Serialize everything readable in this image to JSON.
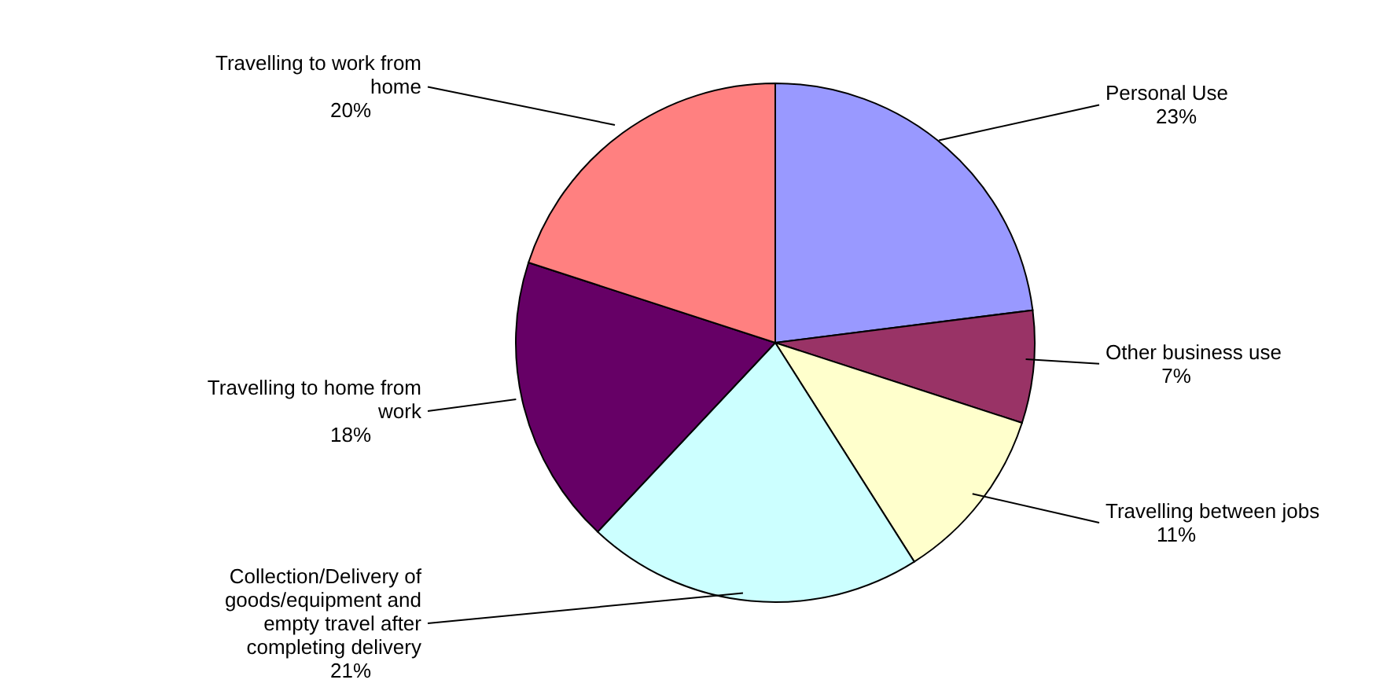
{
  "chart_data": {
    "type": "pie",
    "categories": [
      "Personal Use",
      "Other business use",
      "Travelling between jobs",
      "Collection/Delivery of goods/equipment and empty travel after completing delivery",
      "Travelling to home from work",
      "Travelling to work from home"
    ],
    "values": [
      23,
      7,
      11,
      21,
      18,
      20
    ],
    "value_labels": [
      "23%",
      "7%",
      "11%",
      "21%",
      "18%",
      "20%"
    ],
    "colors": [
      "#9999ff",
      "#993366",
      "#ffffcc",
      "#ccffff",
      "#660066",
      "#ff8080"
    ]
  }
}
